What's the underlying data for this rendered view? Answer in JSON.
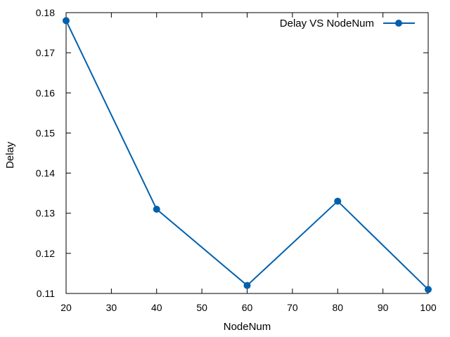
{
  "chart_data": {
    "type": "line",
    "title": "",
    "xlabel": "NodeNum",
    "ylabel": "Delay",
    "x": [
      20,
      40,
      60,
      80,
      100
    ],
    "series": [
      {
        "name": "Delay VS NodeNum",
        "values": [
          0.178,
          0.131,
          0.112,
          0.133,
          0.111
        ],
        "color": "#0060ad"
      }
    ],
    "xlim": [
      20,
      100
    ],
    "ylim": [
      0.11,
      0.18
    ],
    "xticks": [
      "20",
      "30",
      "40",
      "50",
      "60",
      "70",
      "80",
      "90",
      "100"
    ],
    "yticks": [
      "0.11",
      "0.12",
      "0.13",
      "0.14",
      "0.15",
      "0.16",
      "0.17",
      "0.18"
    ],
    "grid": false,
    "legend_position": "top-right",
    "marker": "circle"
  }
}
